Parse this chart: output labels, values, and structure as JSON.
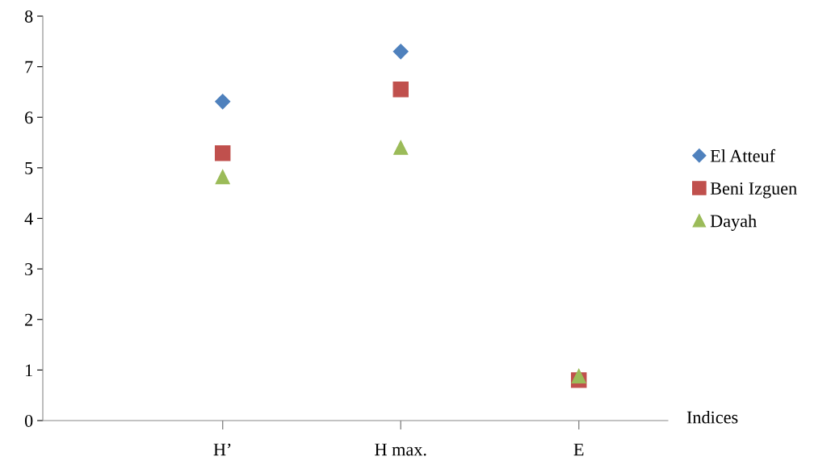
{
  "chart_data": {
    "type": "scatter",
    "xlabel": "Indices",
    "categories": [
      "H’",
      "H max.",
      "E"
    ],
    "series": [
      {
        "name": "El Atteuf",
        "color": "#4f81bd",
        "marker": "diamond",
        "values": [
          6.31,
          7.3,
          null
        ]
      },
      {
        "name": "Beni Izguen",
        "color": "#c0504d",
        "marker": "square",
        "values": [
          5.29,
          6.55,
          0.8
        ]
      },
      {
        "name": "Dayah",
        "color": "#9bbb59",
        "marker": "triangle",
        "values": [
          4.82,
          5.4,
          0.88
        ]
      }
    ],
    "ylim": [
      0,
      8
    ],
    "yticks": [
      0,
      1,
      2,
      3,
      4,
      5,
      6,
      7,
      8
    ],
    "grid": false,
    "legend": "right"
  }
}
